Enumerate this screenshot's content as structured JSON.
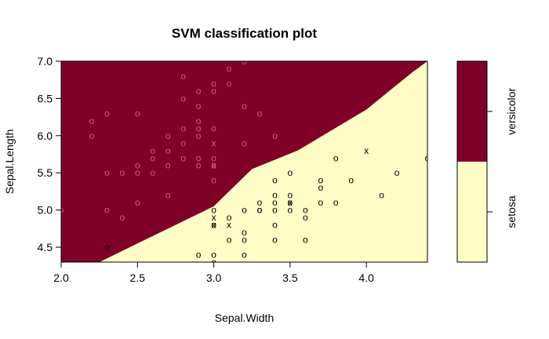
{
  "chart_data": {
    "type": "scatter",
    "title": "SVM classification plot",
    "xlabel": "Sepal.Width",
    "ylabel": "Sepal.Length",
    "xlim": [
      2.0,
      4.4
    ],
    "ylim": [
      4.3,
      7.0
    ],
    "xticks": [
      "2.0",
      "2.5",
      "3.0",
      "3.5",
      "4.0"
    ],
    "yticks": [
      "4.5",
      "5.0",
      "5.5",
      "6.0",
      "6.5",
      "7.0"
    ],
    "legend": {
      "labels": [
        "versicolor",
        "setosa"
      ],
      "colors": [
        "#7f0029",
        "#fffdc5"
      ]
    },
    "decision_boundary": {
      "note": "versicolor region above, setosa region below",
      "points": [
        [
          2.25,
          4.3
        ],
        [
          2.5,
          4.55
        ],
        [
          3.0,
          5.05
        ],
        [
          3.25,
          5.55
        ],
        [
          3.55,
          5.8
        ],
        [
          4.0,
          6.35
        ],
        [
          4.3,
          6.85
        ],
        [
          4.4,
          7.0
        ]
      ]
    },
    "colors": {
      "versicolor": "#d75a6e",
      "setosa": "#000000",
      "bg_versicolor": "#7f0029",
      "bg_setosa": "#fffdc5"
    },
    "series": [
      {
        "name": "versicolor",
        "points": [
          [
            2.3,
            6.3,
            "o"
          ],
          [
            2.2,
            6.2,
            "o"
          ],
          [
            2.2,
            6.0,
            "o"
          ],
          [
            2.5,
            6.3,
            "o"
          ],
          [
            2.3,
            5.5,
            "o"
          ],
          [
            2.4,
            5.5,
            "o"
          ],
          [
            2.5,
            5.5,
            "o"
          ],
          [
            2.5,
            5.6,
            "o"
          ],
          [
            2.6,
            5.5,
            "o"
          ],
          [
            2.6,
            5.7,
            "o"
          ],
          [
            2.6,
            5.8,
            "o"
          ],
          [
            2.7,
            5.8,
            "o"
          ],
          [
            2.7,
            6.0,
            "o"
          ],
          [
            2.7,
            5.6,
            "o"
          ],
          [
            2.7,
            5.2,
            "o"
          ],
          [
            2.8,
            6.8,
            "o"
          ],
          [
            2.8,
            6.5,
            "o"
          ],
          [
            2.8,
            6.1,
            "o"
          ],
          [
            2.8,
            5.7,
            "o"
          ],
          [
            2.9,
            6.4,
            "o"
          ],
          [
            2.9,
            6.6,
            "o"
          ],
          [
            2.9,
            6.2,
            "o"
          ],
          [
            2.9,
            6.1,
            "o"
          ],
          [
            2.9,
            6.0,
            "o"
          ],
          [
            2.9,
            5.7,
            "o"
          ],
          [
            2.9,
            5.6,
            "o"
          ],
          [
            3.0,
            6.7,
            "o"
          ],
          [
            3.0,
            6.6,
            "o"
          ],
          [
            3.0,
            6.1,
            "o"
          ],
          [
            3.0,
            5.9,
            "x"
          ],
          [
            3.0,
            5.6,
            "x"
          ],
          [
            3.0,
            5.6,
            "o"
          ],
          [
            3.0,
            5.4,
            "o"
          ],
          [
            3.1,
            6.9,
            "o"
          ],
          [
            3.1,
            6.7,
            "o"
          ],
          [
            3.2,
            7.0,
            "o"
          ],
          [
            3.2,
            6.4,
            "o"
          ],
          [
            3.2,
            5.9,
            "o"
          ],
          [
            3.3,
            6.3,
            "o"
          ],
          [
            3.4,
            6.0,
            "o"
          ],
          [
            2.4,
            4.9,
            "o"
          ],
          [
            2.3,
            5.0,
            "o"
          ],
          [
            2.5,
            5.1,
            "o"
          ],
          [
            2.0,
            5.0,
            "o"
          ],
          [
            2.8,
            5.9,
            "o"
          ],
          [
            3.0,
            5.7,
            "o"
          ]
        ]
      },
      {
        "name": "setosa",
        "points": [
          [
            2.3,
            4.5,
            "o"
          ],
          [
            2.9,
            4.4,
            "o"
          ],
          [
            3.0,
            4.4,
            "o"
          ],
          [
            3.0,
            4.3,
            "o"
          ],
          [
            3.0,
            4.8,
            "o"
          ],
          [
            3.0,
            4.8,
            "x"
          ],
          [
            3.0,
            4.9,
            "x"
          ],
          [
            3.0,
            5.0,
            "o"
          ],
          [
            3.1,
            4.6,
            "o"
          ],
          [
            3.1,
            4.8,
            "x"
          ],
          [
            3.1,
            4.9,
            "o"
          ],
          [
            3.2,
            4.4,
            "o"
          ],
          [
            3.2,
            4.6,
            "o"
          ],
          [
            3.2,
            4.7,
            "o"
          ],
          [
            3.2,
            5.0,
            "o"
          ],
          [
            3.3,
            5.0,
            "o"
          ],
          [
            3.3,
            5.1,
            "o"
          ],
          [
            3.4,
            4.6,
            "o"
          ],
          [
            3.4,
            4.8,
            "o"
          ],
          [
            3.4,
            5.0,
            "o"
          ],
          [
            3.4,
            5.1,
            "o"
          ],
          [
            3.4,
            5.2,
            "o"
          ],
          [
            3.4,
            5.4,
            "o"
          ],
          [
            3.5,
            5.0,
            "o"
          ],
          [
            3.5,
            5.1,
            "o"
          ],
          [
            3.5,
            5.2,
            "o"
          ],
          [
            3.5,
            5.5,
            "o"
          ],
          [
            3.6,
            4.6,
            "o"
          ],
          [
            3.6,
            5.0,
            "o"
          ],
          [
            3.7,
            5.1,
            "o"
          ],
          [
            3.7,
            5.3,
            "o"
          ],
          [
            3.7,
            5.4,
            "o"
          ],
          [
            3.8,
            5.1,
            "o"
          ],
          [
            3.8,
            5.7,
            "o"
          ],
          [
            3.9,
            5.4,
            "o"
          ],
          [
            4.0,
            5.8,
            "x"
          ],
          [
            4.1,
            5.2,
            "o"
          ],
          [
            4.2,
            5.5,
            "o"
          ],
          [
            4.4,
            5.7,
            "o"
          ],
          [
            3.5,
            5.1,
            "x"
          ],
          [
            3.6,
            4.9,
            "o"
          ],
          [
            3.3,
            5.0,
            "o"
          ]
        ]
      }
    ]
  }
}
